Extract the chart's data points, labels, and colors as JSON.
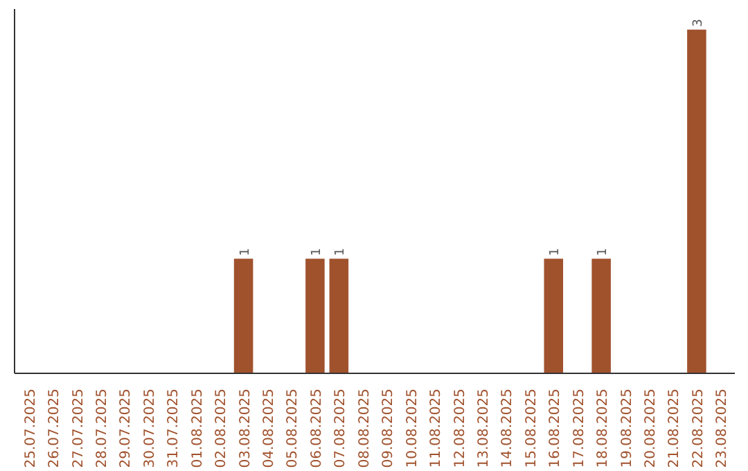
{
  "chart_data": {
    "type": "bar",
    "categories": [
      "25.07.2025",
      "26.07.2025",
      "27.07.2025",
      "28.07.2025",
      "29.07.2025",
      "30.07.2025",
      "31.07.2025",
      "01.08.2025",
      "02.08.2025",
      "03.08.2025",
      "04.08.2025",
      "05.08.2025",
      "06.08.2025",
      "07.08.2025",
      "08.08.2025",
      "09.08.2025",
      "10.08.2025",
      "11.08.2025",
      "12.08.2025",
      "13.08.2025",
      "14.08.2025",
      "15.08.2025",
      "16.08.2025",
      "17.08.2025",
      "18.08.2025",
      "19.08.2025",
      "20.08.2025",
      "21.08.2025",
      "22.08.2025",
      "23.08.2025"
    ],
    "values": [
      0,
      0,
      0,
      0,
      0,
      0,
      0,
      0,
      0,
      1,
      0,
      0,
      1,
      1,
      0,
      0,
      0,
      0,
      0,
      0,
      0,
      0,
      1,
      0,
      1,
      0,
      0,
      0,
      3,
      0
    ],
    "value_labels": [
      null,
      null,
      null,
      null,
      null,
      null,
      null,
      null,
      null,
      "1",
      null,
      null,
      "1",
      "1",
      null,
      null,
      null,
      null,
      null,
      null,
      null,
      null,
      "1",
      null,
      "1",
      null,
      null,
      null,
      "3",
      null
    ],
    "color": "#a0522d",
    "grid": false,
    "tick_labels": "x"
  }
}
